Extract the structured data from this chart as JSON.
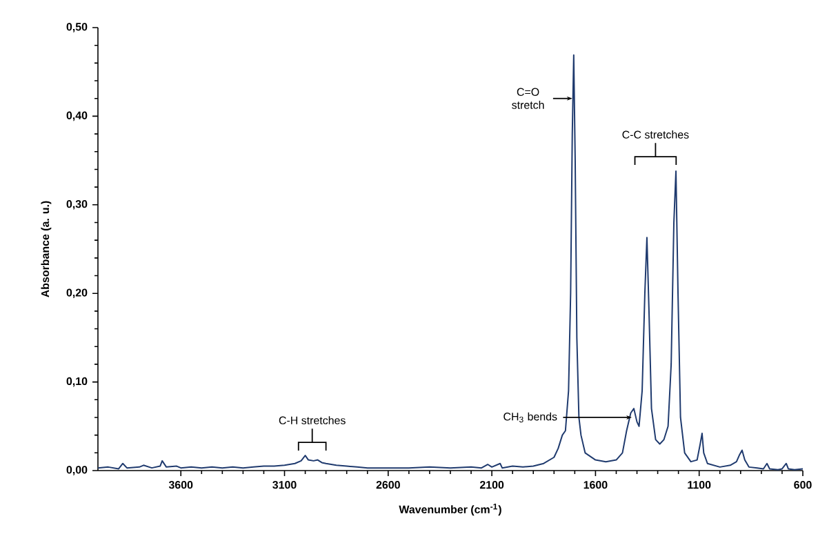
{
  "chart_data": {
    "type": "line",
    "xlabel": "Wavenumber (cm$^{-1}$)",
    "ylabel": "Absorbance (a. u.)",
    "xlim": [
      4000,
      600
    ],
    "ylim": [
      0,
      0.5
    ],
    "xticks": [
      3600,
      3100,
      2600,
      2100,
      1600,
      1100,
      600
    ],
    "yticks": [
      {
        "value": 0,
        "label": "0,00"
      },
      {
        "value": 0.1,
        "label": "0,10"
      },
      {
        "value": 0.2,
        "label": "0,20"
      },
      {
        "value": 0.3,
        "label": "0,30"
      },
      {
        "value": 0.4,
        "label": "0,40"
      },
      {
        "value": 0.5,
        "label": "0,50"
      }
    ],
    "grid": false,
    "marker": "none",
    "line_style": "solid",
    "annotations": [
      {
        "text": "C=O stretch",
        "x": 1712,
        "y": 0.42
      },
      "C-C stretches",
      "C-H stretches",
      {
        "text": "CH$_{3}$ bends",
        "x": 1425,
        "y": 0.06
      }
    ],
    "series": [
      {
        "color": "#1f3a6e",
        "x": [
          4000,
          3950,
          3900,
          3880,
          3860,
          3800,
          3780,
          3740,
          3700,
          3690,
          3670,
          3620,
          3600,
          3550,
          3500,
          3450,
          3400,
          3350,
          3300,
          3250,
          3200,
          3150,
          3100,
          3050,
          3020,
          3000,
          2985,
          2960,
          2940,
          2920,
          2900,
          2850,
          2800,
          2750,
          2700,
          2600,
          2500,
          2400,
          2300,
          2200,
          2150,
          2120,
          2100,
          2060,
          2050,
          2000,
          1950,
          1900,
          1850,
          1800,
          1780,
          1760,
          1745,
          1730,
          1720,
          1712,
          1705,
          1698,
          1690,
          1680,
          1670,
          1650,
          1600,
          1550,
          1500,
          1470,
          1450,
          1430,
          1415,
          1400,
          1390,
          1375,
          1362,
          1352,
          1342,
          1330,
          1310,
          1290,
          1270,
          1250,
          1235,
          1222,
          1212,
          1202,
          1190,
          1170,
          1140,
          1110,
          1095,
          1086,
          1078,
          1060,
          1000,
          950,
          920,
          905,
          893,
          880,
          860,
          820,
          790,
          773,
          760,
          720,
          700,
          680,
          670,
          640,
          600
        ],
        "values": [
          0.003,
          0.004,
          0.002,
          0.008,
          0.003,
          0.004,
          0.006,
          0.003,
          0.005,
          0.011,
          0.004,
          0.005,
          0.003,
          0.004,
          0.003,
          0.004,
          0.003,
          0.004,
          0.003,
          0.004,
          0.005,
          0.005,
          0.006,
          0.008,
          0.011,
          0.017,
          0.012,
          0.011,
          0.012,
          0.009,
          0.008,
          0.006,
          0.005,
          0.004,
          0.003,
          0.003,
          0.003,
          0.004,
          0.003,
          0.004,
          0.003,
          0.007,
          0.004,
          0.008,
          0.003,
          0.005,
          0.004,
          0.005,
          0.008,
          0.015,
          0.025,
          0.04,
          0.045,
          0.09,
          0.2,
          0.38,
          0.469,
          0.35,
          0.15,
          0.06,
          0.04,
          0.02,
          0.012,
          0.01,
          0.012,
          0.02,
          0.045,
          0.065,
          0.07,
          0.055,
          0.05,
          0.09,
          0.2,
          0.263,
          0.18,
          0.07,
          0.035,
          0.03,
          0.035,
          0.05,
          0.12,
          0.28,
          0.338,
          0.2,
          0.06,
          0.02,
          0.01,
          0.012,
          0.03,
          0.042,
          0.02,
          0.008,
          0.004,
          0.006,
          0.01,
          0.018,
          0.023,
          0.012,
          0.004,
          0.003,
          0.002,
          0.008,
          0.002,
          0.001,
          0.002,
          0.008,
          0.002,
          0.001,
          0.002
        ]
      }
    ]
  }
}
